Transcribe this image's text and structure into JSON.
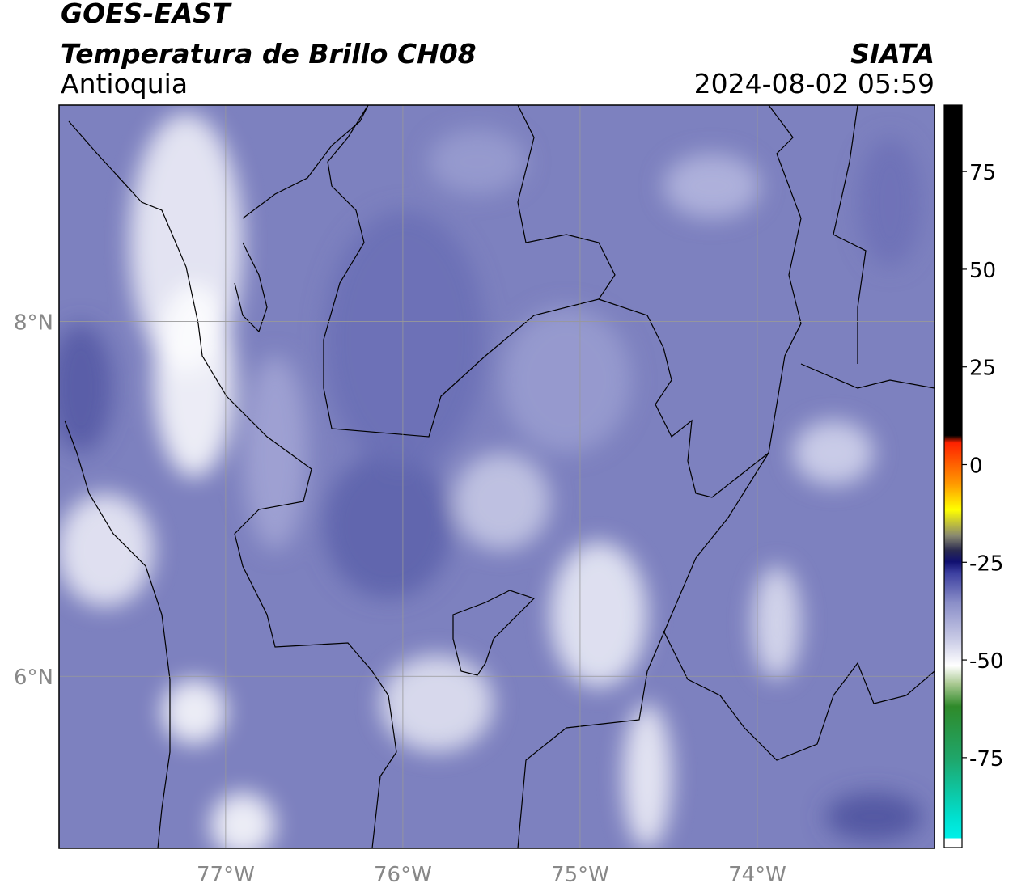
{
  "header": {
    "title": "GOES-EAST",
    "subtitle": "Temperatura de Brillo CH08",
    "region": "Antioquia",
    "source": "SIATA",
    "timestamp": "2024-08-02 05:59"
  },
  "map": {
    "xlim": [
      -77.94,
      -73.0
    ],
    "ylim": [
      5.03,
      9.22
    ],
    "xticks": [
      {
        "value": -77,
        "label": "77°W"
      },
      {
        "value": -76,
        "label": "76°W"
      },
      {
        "value": -75,
        "label": "75°W"
      },
      {
        "value": -74,
        "label": "74°W"
      }
    ],
    "yticks": [
      {
        "value": 8,
        "label": "8°N"
      },
      {
        "value": 6,
        "label": "6°N"
      }
    ],
    "grid": true
  },
  "colorbar": {
    "lim": [
      -98,
      92
    ],
    "ticks": [
      75,
      50,
      25,
      0,
      -25,
      -50,
      -75
    ]
  }
}
